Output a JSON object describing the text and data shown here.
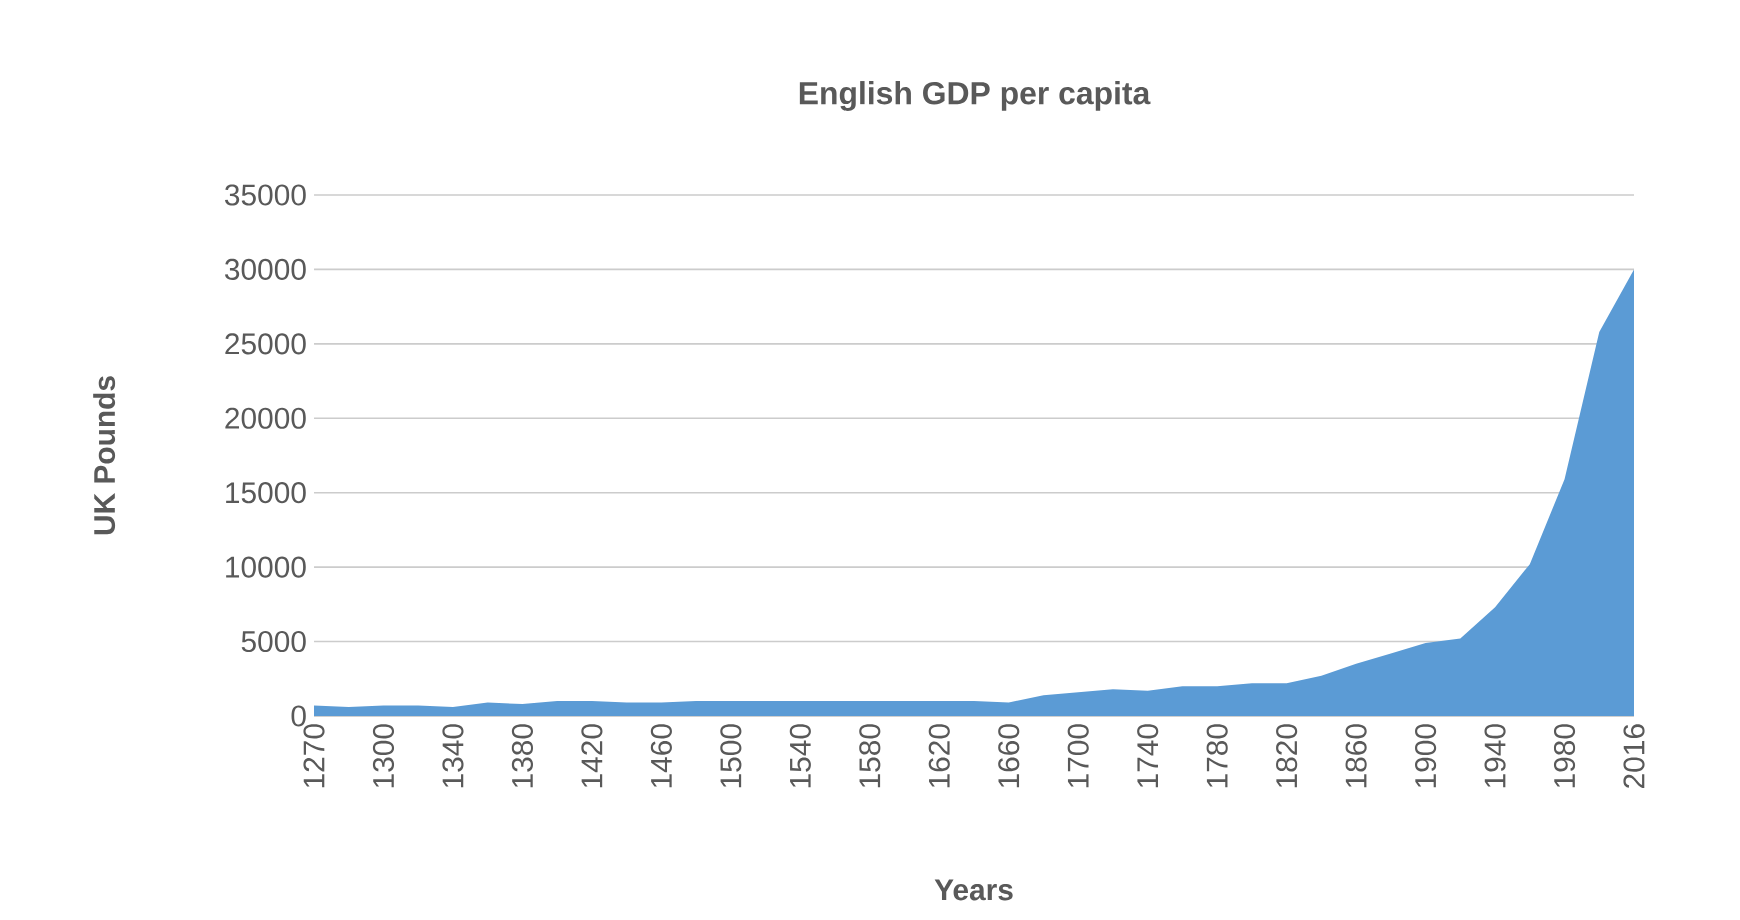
{
  "chart_data": {
    "type": "area",
    "title": "English GDP per capita",
    "xlabel": "Years",
    "ylabel": "UK Pounds",
    "categories": [
      "1270",
      null,
      "1300",
      null,
      "1340",
      null,
      "1380",
      null,
      "1420",
      null,
      "1460",
      null,
      "1500",
      null,
      "1540",
      null,
      "1580",
      null,
      "1620",
      null,
      "1660",
      null,
      "1700",
      null,
      "1740",
      null,
      "1780",
      null,
      "1820",
      null,
      "1860",
      null,
      "1900",
      null,
      "1940",
      null,
      "1980",
      null,
      "2016"
    ],
    "values": [
      700,
      600,
      700,
      700,
      600,
      900,
      800,
      1000,
      1000,
      900,
      900,
      1000,
      1000,
      1000,
      1000,
      1000,
      1000,
      1000,
      1000,
      1000,
      900,
      1400,
      1600,
      1800,
      1700,
      2000,
      2000,
      2200,
      2200,
      2700,
      3500,
      4200,
      4900,
      5200,
      7300,
      10200,
      15900,
      25800,
      30000
    ],
    "color": "#5b9bd5",
    "ylim": [
      0,
      35000
    ],
    "yticks": [
      0,
      5000,
      10000,
      15000,
      20000,
      25000,
      30000,
      35000
    ],
    "grid": "y"
  }
}
